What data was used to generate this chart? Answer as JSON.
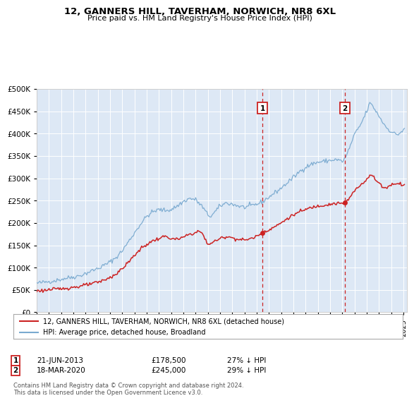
{
  "title": "12, GANNERS HILL, TAVERHAM, NORWICH, NR8 6XL",
  "subtitle": "Price paid vs. HM Land Registry's House Price Index (HPI)",
  "background_color": "#ffffff",
  "plot_bg_color": "#dde8f5",
  "grid_color": "#ffffff",
  "hpi_color": "#7aaad0",
  "price_color": "#cc2222",
  "marker1_x": 2013.46,
  "marker1_price": 178500,
  "marker2_x": 2020.21,
  "marker2_price": 245000,
  "legend_entry1": "12, GANNERS HILL, TAVERHAM, NORWICH, NR8 6XL (detached house)",
  "legend_entry2": "HPI: Average price, detached house, Broadland",
  "annotation1_date": "21-JUN-2013",
  "annotation1_price": "£178,500",
  "annotation1_hpi": "27% ↓ HPI",
  "annotation2_date": "18-MAR-2020",
  "annotation2_price": "£245,000",
  "annotation2_hpi": "29% ↓ HPI",
  "footer": "Contains HM Land Registry data © Crown copyright and database right 2024.\nThis data is licensed under the Open Government Licence v3.0.",
  "ylim": [
    0,
    500000
  ],
  "yticks": [
    0,
    50000,
    100000,
    150000,
    200000,
    250000,
    300000,
    350000,
    400000,
    450000,
    500000
  ],
  "xlim_start": 1995.0,
  "xlim_end": 2025.3
}
